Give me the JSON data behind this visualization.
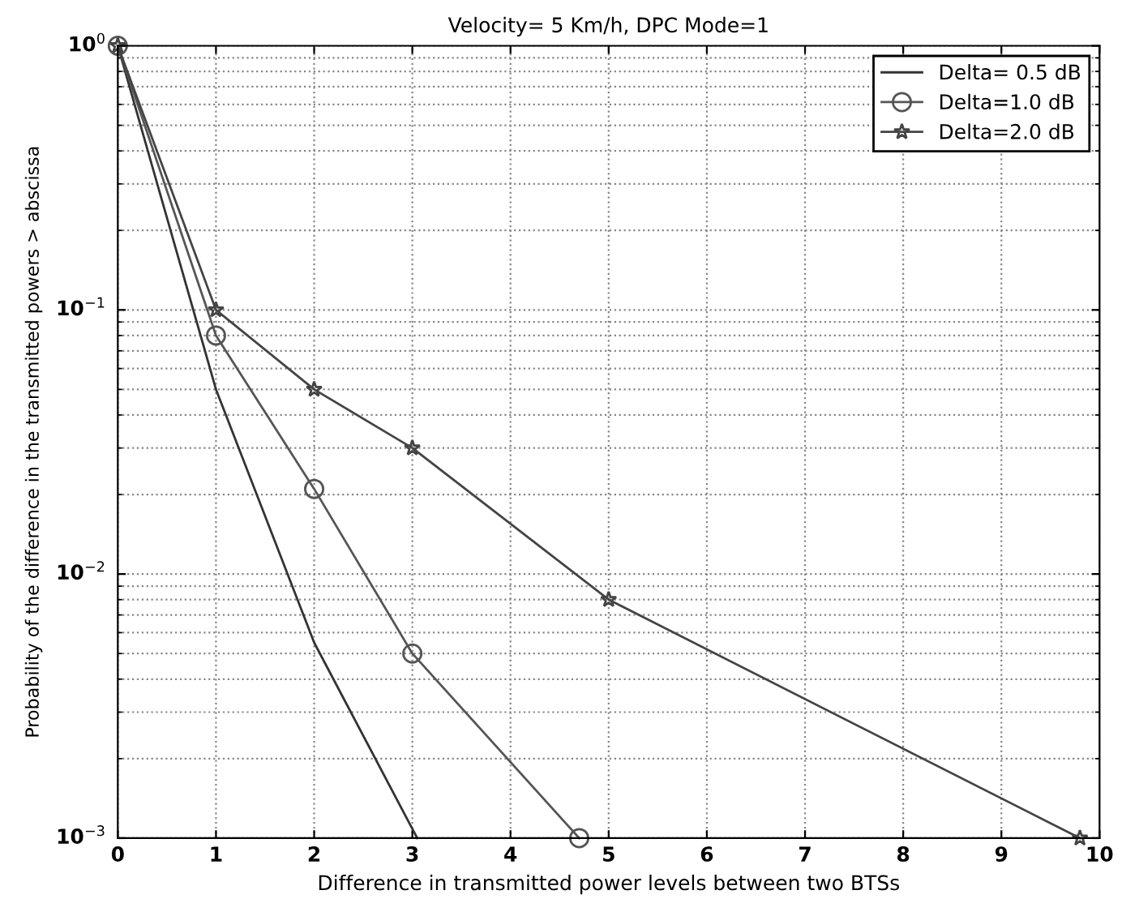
{
  "chart_data": {
    "type": "line",
    "title": "Velocity= 5 Km/h, DPC Mode=1",
    "xlabel": "Difference in transmitted power levels between two BTSs",
    "ylabel": "Probability of the difference in the transmitted powers > abscissa",
    "series": [
      {
        "name": "Delta= 0.5 dB",
        "color": "#333333",
        "marker": "none",
        "x": [
          0,
          1,
          2,
          3.05
        ],
        "values": [
          1,
          0.05,
          0.0055,
          0.001
        ]
      },
      {
        "name": "Delta=1.0 dB",
        "color": "#555555",
        "marker": "circle",
        "x": [
          0,
          1,
          2,
          3,
          4.7
        ],
        "values": [
          1,
          0.08,
          0.021,
          0.005,
          0.001
        ]
      },
      {
        "name": "Delta=2.0 dB",
        "color": "#444444",
        "marker": "star",
        "x": [
          0,
          1,
          2,
          3,
          5,
          9.8
        ],
        "values": [
          1,
          0.1,
          0.05,
          0.03,
          0.008,
          0.001
        ]
      }
    ],
    "log": "y",
    "xlim": [
      0,
      10
    ],
    "xticks": [
      0,
      1,
      2,
      3,
      4,
      5,
      6,
      7,
      8,
      9,
      10
    ],
    "ylim": [
      0.001,
      1
    ],
    "yticks": [
      {
        "value": 0.001,
        "label": "10$^{−3}$"
      },
      {
        "value": 0.01,
        "label": "10$^{−2}$"
      },
      {
        "value": 0.1,
        "label": "10$^{−1}$"
      },
      {
        "value": 1,
        "label": "10$^{0}$"
      }
    ],
    "grid": true,
    "legend": "top right",
    "line_style": "solid"
  }
}
